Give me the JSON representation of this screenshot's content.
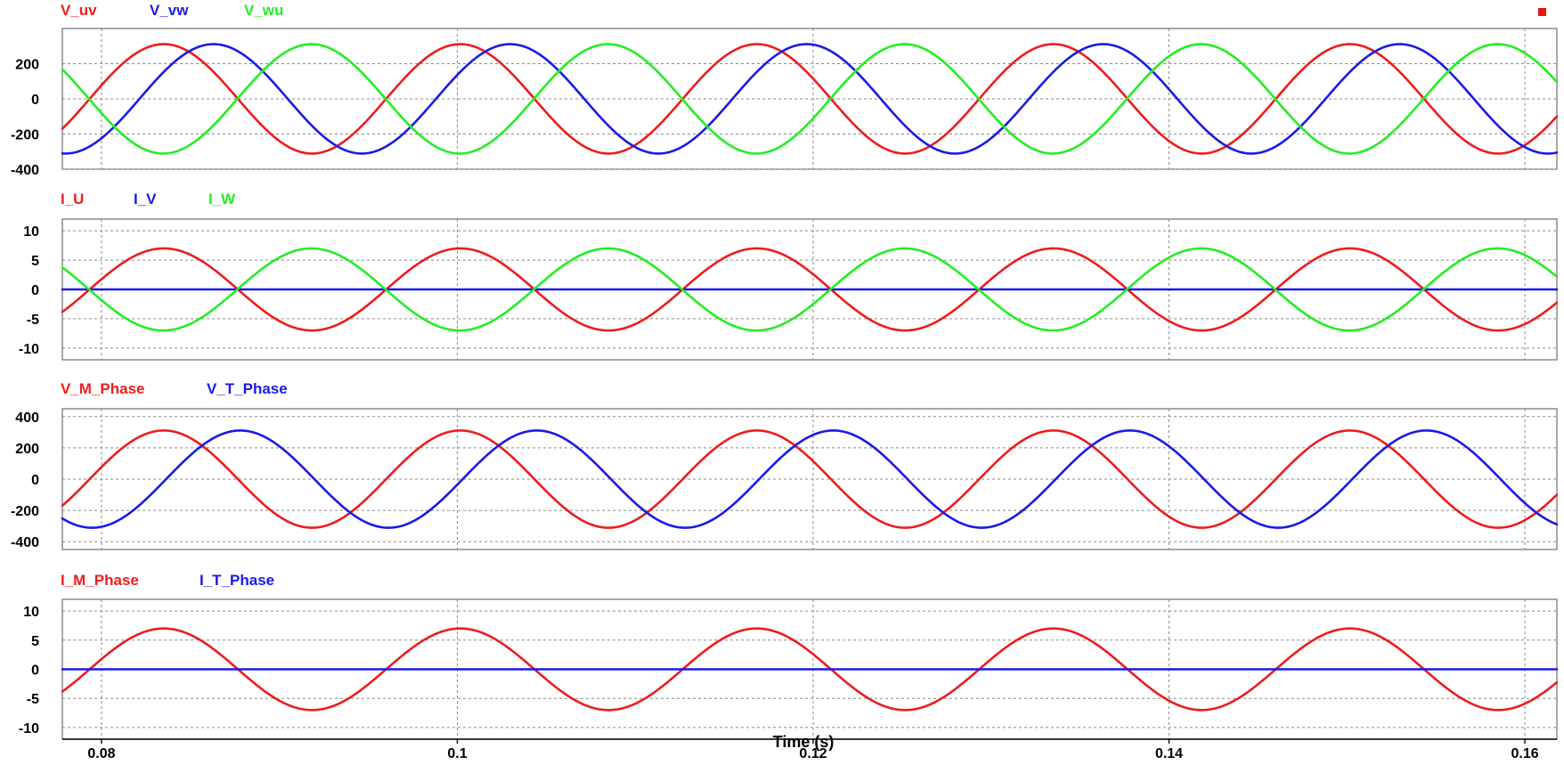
{
  "colors": {
    "red": "#ee1c1c",
    "blue": "#1a1ae6",
    "green": "#22ee22",
    "marker": "#ee1111"
  },
  "chart_data": {
    "type": "line",
    "xlabel": "Time (s)",
    "xlim": [
      0.0778,
      0.1618
    ],
    "x_ticks": [
      0.08,
      0.1,
      0.12,
      0.14,
      0.16
    ],
    "x_tick_labels": [
      "0.08",
      "0.1",
      "0.12",
      "0.14",
      "0.16"
    ],
    "grid": true,
    "panels": [
      {
        "ylim": [
          -400,
          400
        ],
        "y_ticks": [
          200,
          0,
          -200,
          -400
        ],
        "y_tick_labels": [
          "200",
          "0",
          "-200",
          "-400"
        ],
        "series": [
          {
            "name": "V_uv",
            "color": "red",
            "amplitude": 311,
            "frequency_hz": 60,
            "peak_times": [
              0.0835,
              0.1002,
              0.1168,
              0.1335,
              0.1502
            ]
          },
          {
            "name": "V_vw",
            "color": "blue",
            "amplitude": 311,
            "frequency_hz": 60,
            "peak_times": [
              0.0863,
              0.103,
              0.1197,
              0.1363,
              0.153
            ]
          },
          {
            "name": "V_wu",
            "color": "green",
            "amplitude": 311,
            "frequency_hz": 60,
            "peak_times": [
              0.0918,
              0.1085,
              0.1252,
              0.1418,
              0.1585
            ]
          }
        ]
      },
      {
        "ylim": [
          -12,
          12
        ],
        "y_ticks": [
          10,
          5,
          0,
          -5,
          -10
        ],
        "y_tick_labels": [
          "10",
          "5",
          "0",
          "-5",
          "-10"
        ],
        "series": [
          {
            "name": "I_U",
            "color": "red",
            "amplitude": 7,
            "frequency_hz": 60,
            "peak_times": [
              0.0835,
              0.1002,
              0.1168,
              0.1335,
              0.1502
            ]
          },
          {
            "name": "I_V",
            "color": "blue",
            "amplitude": 0,
            "frequency_hz": 60,
            "peak_times": [
              0.0835
            ]
          },
          {
            "name": "I_W",
            "color": "green",
            "amplitude": 7,
            "frequency_hz": 60,
            "peak_times": [
              0.0918,
              0.1085,
              0.1252,
              0.1418,
              0.1585
            ]
          }
        ]
      },
      {
        "ylim": [
          -450,
          450
        ],
        "y_ticks": [
          400,
          200,
          0,
          -200,
          -400
        ],
        "y_tick_labels": [
          "400",
          "200",
          "0",
          "-200",
          "-400"
        ],
        "series": [
          {
            "name": "V_M_Phase",
            "color": "red",
            "amplitude": 311,
            "frequency_hz": 60,
            "peak_times": [
              0.0835,
              0.1002,
              0.1168,
              0.1335,
              0.1502
            ]
          },
          {
            "name": "V_T_Phase",
            "color": "blue",
            "amplitude": 311,
            "frequency_hz": 60,
            "peak_times": [
              0.0878,
              0.1045,
              0.1212,
              0.1378,
              0.1545
            ]
          }
        ]
      },
      {
        "ylim": [
          -12,
          12
        ],
        "y_ticks": [
          10,
          5,
          0,
          -5,
          -10
        ],
        "y_tick_labels": [
          "10",
          "5",
          "0",
          "-5",
          "-10"
        ],
        "series": [
          {
            "name": "I_M_Phase",
            "color": "red",
            "amplitude": 7,
            "frequency_hz": 60,
            "peak_times": [
              0.0835,
              0.1002,
              0.1168,
              0.1335,
              0.1502
            ]
          },
          {
            "name": "I_T_Phase",
            "color": "blue",
            "amplitude": 0,
            "frequency_hz": 60,
            "peak_times": [
              0.0835
            ]
          }
        ]
      }
    ]
  }
}
